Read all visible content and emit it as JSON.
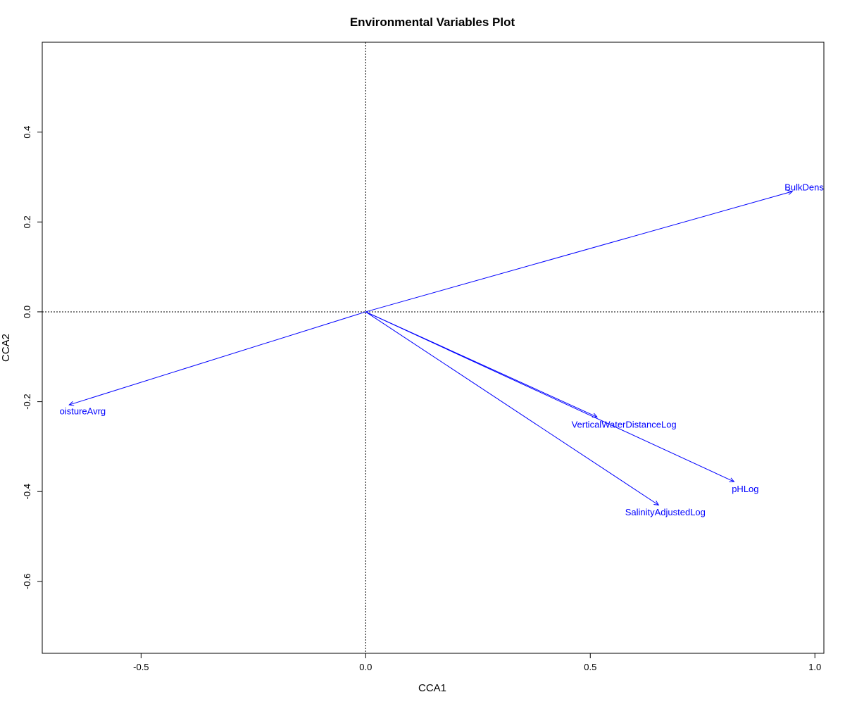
{
  "chart_data": {
    "type": "scatter",
    "title": "Environmental Variables Plot",
    "xlabel": "CCA1",
    "ylabel": "CCA2",
    "xlim": [
      -0.72,
      1.02
    ],
    "ylim": [
      -0.76,
      0.6
    ],
    "xticks": [
      -0.5,
      0.0,
      0.5,
      1.0
    ],
    "xtick_labels": [
      "-0.5",
      "0.0",
      "0.5",
      "1.0"
    ],
    "yticks": [
      -0.6,
      -0.4,
      -0.2,
      0.0,
      0.2,
      0.4
    ],
    "ytick_labels": [
      "-0.6",
      "-0.4",
      "-0.2",
      "0.0",
      "0.2",
      "0.4"
    ],
    "reference_lines": {
      "x": 0,
      "y": 0,
      "style": "dotted"
    },
    "arrow_color": "#0000ff",
    "vectors": [
      {
        "name": "BulkDensityInc",
        "label": "BulkDensityInc",
        "x": 0.95,
        "y": 0.268,
        "label_x": 1.0,
        "label_y": 0.278,
        "label_anchor": "middle"
      },
      {
        "name": "MoistureAvrg",
        "label": "oistureAvrg",
        "x": -0.66,
        "y": -0.207,
        "label_x": -0.63,
        "label_y": -0.22,
        "label_anchor": "middle"
      },
      {
        "name": "VerticalWaterDistanceLog",
        "label": "VerticalWaterDistanceLog",
        "x": 0.515,
        "y": -0.234,
        "label_x": 0.575,
        "label_y": -0.25,
        "label_anchor": "middle"
      },
      {
        "name": "pHLog",
        "label": "pHLog",
        "x": 0.82,
        "y": -0.378,
        "label_x": 0.845,
        "label_y": -0.393,
        "label_anchor": "middle"
      },
      {
        "name": "SalinityAdjustedLog",
        "label": "SalinityAdjustedLog",
        "x": 0.652,
        "y": -0.43,
        "label_x": 0.667,
        "label_y": -0.445,
        "label_anchor": "middle"
      }
    ]
  }
}
